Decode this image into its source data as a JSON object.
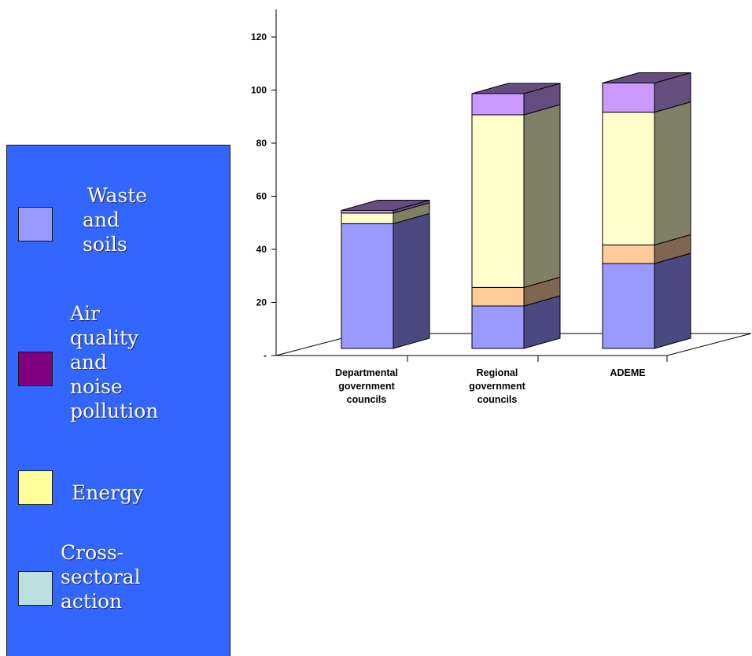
{
  "chart_data": {
    "type": "bar",
    "stacked": true,
    "three_d": true,
    "title": "",
    "xlabel": "",
    "ylabel": "",
    "ylim": [
      0,
      120
    ],
    "y_ticks": [
      "-",
      "20",
      "40",
      "60",
      "80",
      "100",
      "120"
    ],
    "categories": [
      [
        "Departmental",
        "government",
        "councils"
      ],
      [
        "Regional",
        "government",
        "councils"
      ],
      [
        "ADEME"
      ]
    ],
    "series": [
      {
        "name": "Waste and soils",
        "color": "#9999ff",
        "side": "#4a4a80",
        "values": [
          47,
          16,
          32
        ]
      },
      {
        "name": "Air quality and noise pollution",
        "color": "#ffcc99",
        "side": "#806650",
        "values": [
          0,
          7,
          7
        ]
      },
      {
        "name": "Energy",
        "color": "#ffffcc",
        "side": "#808066",
        "values": [
          4,
          65,
          50
        ]
      },
      {
        "name": "Cross-sectoral action",
        "color": "#cc99ff",
        "side": "#664d80",
        "values": [
          1,
          8,
          11
        ]
      }
    ],
    "grid": false,
    "legend_position": "left"
  },
  "legend": {
    "items": [
      {
        "lines": [
          "Waste",
          "and",
          "soils"
        ],
        "swatch_color": "#9999ff"
      },
      {
        "lines": [
          "Air",
          "quality",
          "and",
          "noise",
          "pollution"
        ],
        "swatch_color": "#800080"
      },
      {
        "lines": [
          "Energy"
        ],
        "swatch_color": "#ffff99"
      },
      {
        "lines": [
          "Cross-",
          "sectoral",
          "action"
        ],
        "swatch_color": "#bce0e0"
      }
    ]
  }
}
